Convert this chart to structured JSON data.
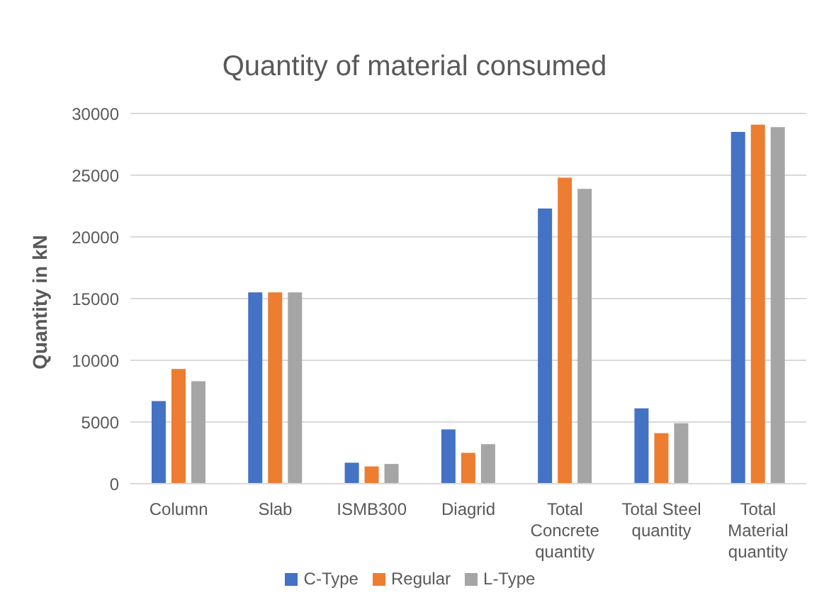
{
  "chart_data": {
    "type": "bar",
    "title": "Quantity of material consumed",
    "ylabel": "Quantity in kN",
    "categories": [
      "Column",
      "Slab",
      "ISMB300",
      "Diagrid",
      "Total Concrete quantity",
      "Total Steel quantity",
      "Total Material quantity"
    ],
    "series": [
      {
        "name": "C-Type",
        "color": "#4472c4",
        "values": [
          6700,
          15500,
          1700,
          4400,
          22300,
          6100,
          28500
        ]
      },
      {
        "name": "Regular",
        "color": "#ed7d31",
        "values": [
          9300,
          15500,
          1400,
          2500,
          24800,
          4100,
          29100
        ]
      },
      {
        "name": "L-Type",
        "color": "#a5a5a5",
        "values": [
          8300,
          15500,
          1600,
          3200,
          23900,
          4900,
          28900
        ]
      }
    ],
    "ylim": [
      0,
      30000
    ],
    "yticks": [
      0,
      5000,
      10000,
      15000,
      20000,
      25000,
      30000
    ],
    "grid": "y",
    "legend": "bottom"
  }
}
